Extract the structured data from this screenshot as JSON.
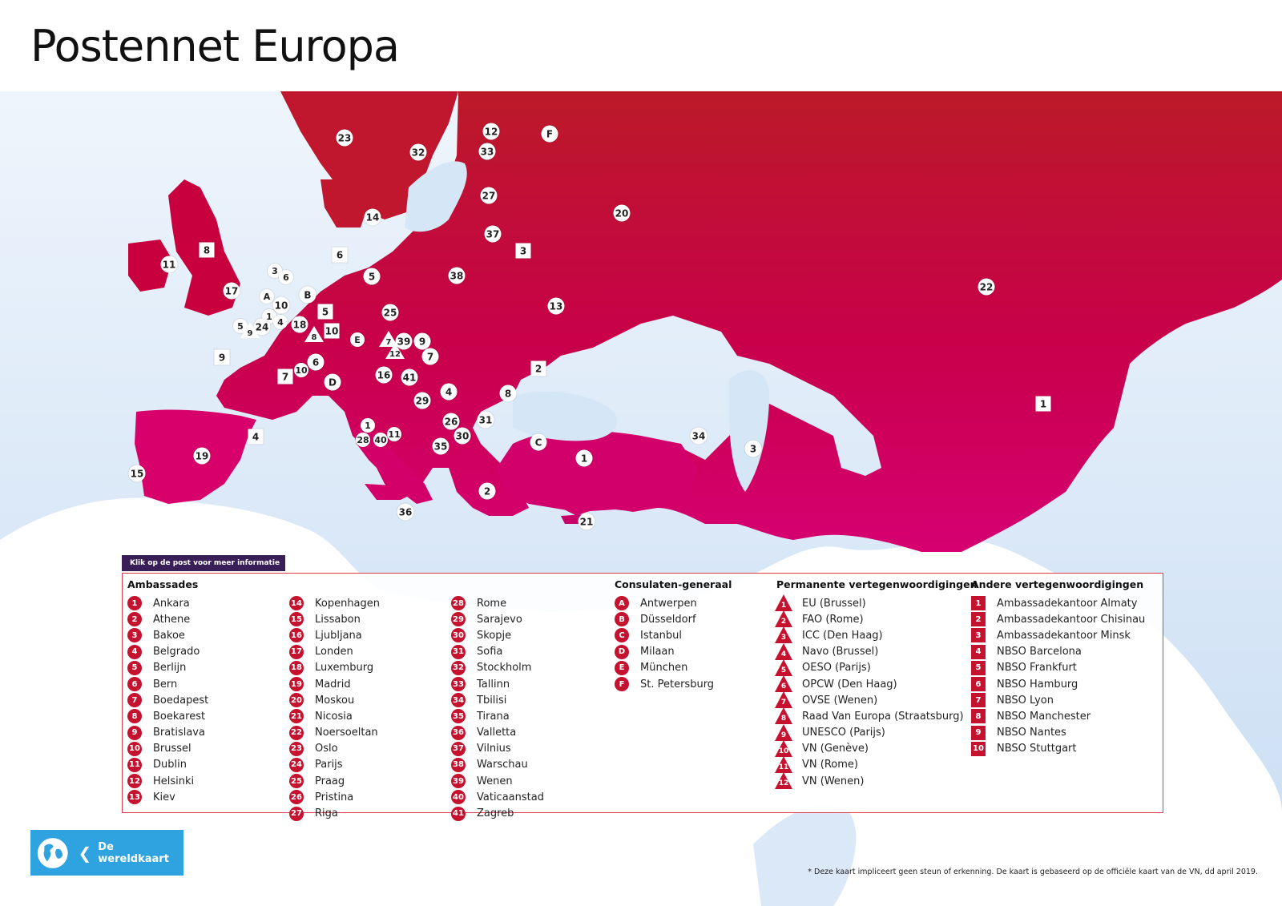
{
  "title": "Postennet Europa",
  "info_label": "Klik op de post voor meer informatie",
  "world_button": "De wereldkaart",
  "note": "*  Deze kaart impliceert geen steun of erkenning. De kaart is gebaseerd op de officiële kaart van de VN, dd april 2019.",
  "colors": {
    "accent": "#c4122f",
    "map_dark": "#b71c2c",
    "map_light": "#d1006e",
    "sea": "#d5e6f6",
    "button": "#2ea3df",
    "tag": "#3a1e58"
  },
  "legend": {
    "ambassades": {
      "heading": "Ambassades",
      "items": [
        "Ankara",
        "Athene",
        "Bakoe",
        "Belgrado",
        "Berlijn",
        "Bern",
        "Boedapest",
        "Boekarest",
        "Bratislava",
        "Brussel",
        "Dublin",
        "Helsinki",
        "Kiev",
        "Kopenhagen",
        "Lissabon",
        "Ljubljana",
        "Londen",
        "Luxemburg",
        "Madrid",
        "Moskou",
        "Nicosia",
        "Noersoeltan",
        "Oslo",
        "Parijs",
        "Praag",
        "Pristina",
        "Riga",
        "Rome",
        "Sarajevo",
        "Skopje",
        "Sofia",
        "Stockholm",
        "Tallinn",
        "Tbilisi",
        "Tirana",
        "Valletta",
        "Vilnius",
        "Warschau",
        "Wenen",
        "Vaticaanstad",
        "Zagreb"
      ]
    },
    "consulaten": {
      "heading": "Consulaten-generaal",
      "items": [
        {
          "code": "A",
          "name": "Antwerpen"
        },
        {
          "code": "B",
          "name": "Düsseldorf"
        },
        {
          "code": "C",
          "name": "Istanbul"
        },
        {
          "code": "D",
          "name": "Milaan"
        },
        {
          "code": "E",
          "name": "München"
        },
        {
          "code": "F",
          "name": "St. Petersburg"
        }
      ]
    },
    "permanente": {
      "heading": "Permanente vertegenwoordigingen",
      "items": [
        "EU (Brussel)",
        "FAO (Rome)",
        "ICC (Den Haag)",
        "Navo (Brussel)",
        "OESO (Parijs)",
        "OPCW (Den Haag)",
        "OVSE (Wenen)",
        "Raad Van Europa (Straatsburg)",
        "UNESCO (Parijs)",
        "VN (Genève)",
        "VN (Rome)",
        "VN (Wenen)"
      ]
    },
    "andere": {
      "heading": "Andere vertegenwoordigingen",
      "items": [
        "Ambassadekantoor Almaty",
        "Ambassadekantoor Chisinau",
        "Ambassadekantoor Minsk",
        "NBSO Barcelona",
        "NBSO Frankfurt",
        "NBSO Hamburg",
        "NBSO Lyon",
        "NBSO Manchester",
        "NBSO Nantes",
        "NBSO Stuttgart"
      ]
    }
  },
  "markers": {
    "circles": [
      "23",
      "12",
      "F",
      "32",
      "33",
      "27",
      "20",
      "14",
      "37",
      "11",
      "5",
      "38",
      "17",
      "A",
      "10",
      "B",
      "1",
      "4",
      "25",
      "18",
      "13",
      "22",
      "24",
      "E",
      "39",
      "9",
      "7",
      "6",
      "10",
      "D",
      "16",
      "41",
      "2",
      "29",
      "4",
      "8",
      "26",
      "31",
      "1",
      "28",
      "40",
      "11",
      "30",
      "C",
      "34",
      "35",
      "19",
      "1",
      "3",
      "15",
      "2",
      "36",
      "21",
      "1"
    ],
    "squares": [
      "8",
      "3",
      "6",
      "3",
      "5",
      "10",
      "9",
      "7",
      "2",
      "4",
      "1"
    ],
    "triangles": [
      "1",
      "9",
      "8",
      "7",
      "12"
    ]
  }
}
